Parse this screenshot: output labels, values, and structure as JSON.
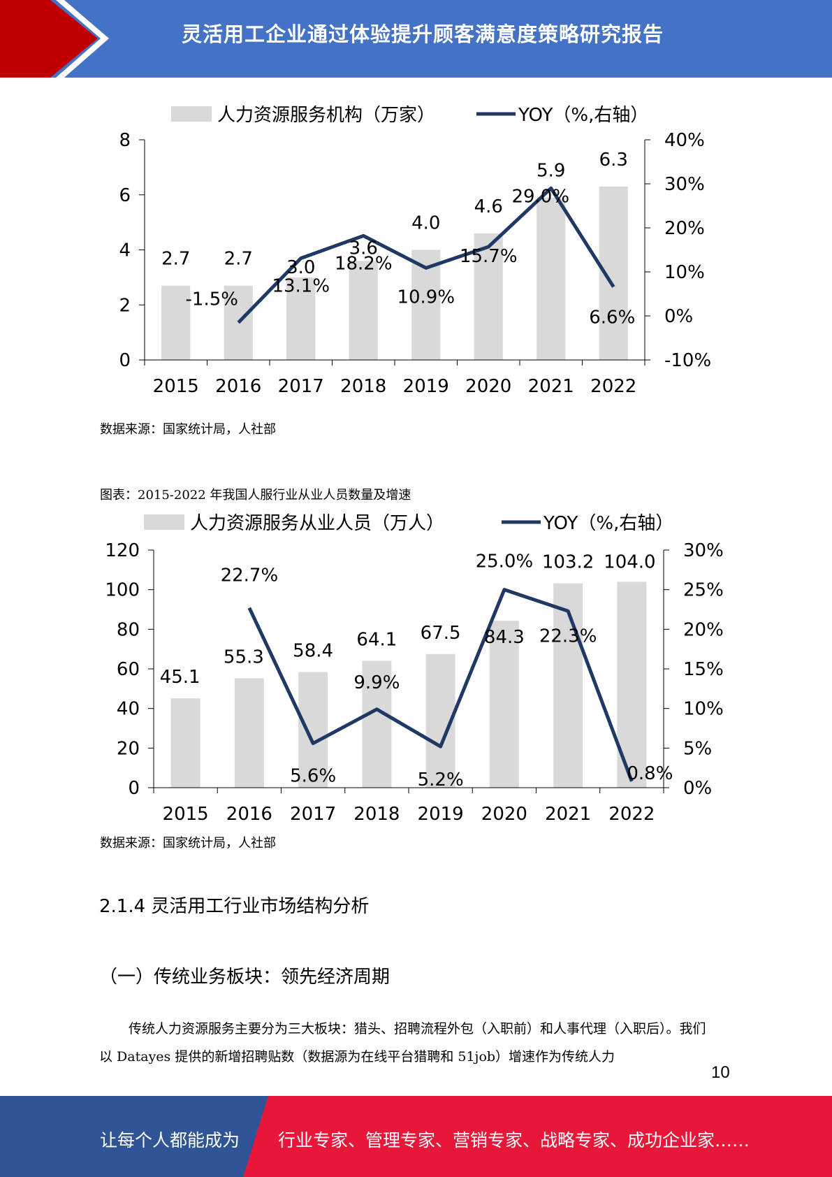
{
  "header": {
    "title": "灵活用工企业通过体验提升顾客满意度策略研究报告"
  },
  "charts": [
    {
      "type": "bar+line",
      "legend": {
        "bar": "人力资源服务机构（万家）",
        "line": "YOY（%,右轴）"
      },
      "categories": [
        "2015",
        "2016",
        "2017",
        "2018",
        "2019",
        "2020",
        "2021",
        "2022"
      ],
      "bar_values": [
        2.7,
        2.7,
        3.0,
        3.6,
        4.0,
        4.6,
        5.9,
        6.3
      ],
      "bar_labels": [
        "2.7",
        "2.7",
        "3.0",
        "3.6",
        "4.0",
        "4.6",
        "5.9",
        "6.3"
      ],
      "line_values": [
        null,
        -1.5,
        13.1,
        18.2,
        10.9,
        15.7,
        29.0,
        6.6
      ],
      "line_labels": [
        "",
        "-1.5%",
        "13.1%",
        "18.2%",
        "10.9%",
        "15.7%",
        "29.0%",
        "6.6%"
      ],
      "left_ticks": [
        "0",
        "2",
        "4",
        "6",
        "8"
      ],
      "right_ticks": [
        "-10%",
        "0%",
        "10%",
        "20%",
        "30%",
        "40%"
      ],
      "ylim": [
        0,
        8
      ],
      "y2lim": [
        -10,
        40
      ],
      "bar_color": "#d9d9d9",
      "line_color": "#1f3864"
    },
    {
      "type": "bar+line",
      "legend": {
        "bar": "人力资源服务从业人员（万人）",
        "line": "YOY（%,右轴）"
      },
      "categories": [
        "2015",
        "2016",
        "2017",
        "2018",
        "2019",
        "2020",
        "2021",
        "2022"
      ],
      "bar_values": [
        45.1,
        55.3,
        58.4,
        64.1,
        67.5,
        84.3,
        103.2,
        104.0
      ],
      "bar_labels": [
        "45.1",
        "55.3",
        "58.4",
        "64.1",
        "67.5",
        "84.3",
        "103.2",
        "104.0"
      ],
      "line_values": [
        null,
        22.7,
        5.6,
        9.9,
        5.2,
        25.0,
        22.3,
        0.8
      ],
      "line_labels": [
        "",
        "22.7%",
        "5.6%",
        "9.9%",
        "5.2%",
        "25.0%",
        "22.3%",
        "0.8%"
      ],
      "left_ticks": [
        "0",
        "20",
        "40",
        "60",
        "80",
        "100",
        "120"
      ],
      "right_ticks": [
        "0%",
        "5%",
        "10%",
        "15%",
        "20%",
        "25%",
        "30%"
      ],
      "ylim": [
        0,
        120
      ],
      "y2lim": [
        0,
        30
      ],
      "bar_color": "#d9d9d9",
      "line_color": "#1f3864"
    }
  ],
  "captions": {
    "source1": "数据来源：国家统计局，人社部",
    "chart2_title": "图表：2015-2022 年我国人服行业从业人员数量及增速",
    "source2": "数据来源：国家统计局，人社部"
  },
  "section": {
    "heading": "2.1.4 灵活用工行业市场结构分析",
    "subheading": "（一）传统业务板块：领先经济周期",
    "paragraph": "传统人力资源服务主要分为三大板块：猎头、招聘流程外包（入职前）和人事代理（入职后）。我们以 Datayes 提供的新增招聘贴数（数据源为在线平台猎聘和 51job）增速作为传统人力"
  },
  "page_number": "10",
  "footer": {
    "left": "让每个人都能成为",
    "right": "行业专家、管理专家、营销专家、战略专家、成功企业家……"
  }
}
